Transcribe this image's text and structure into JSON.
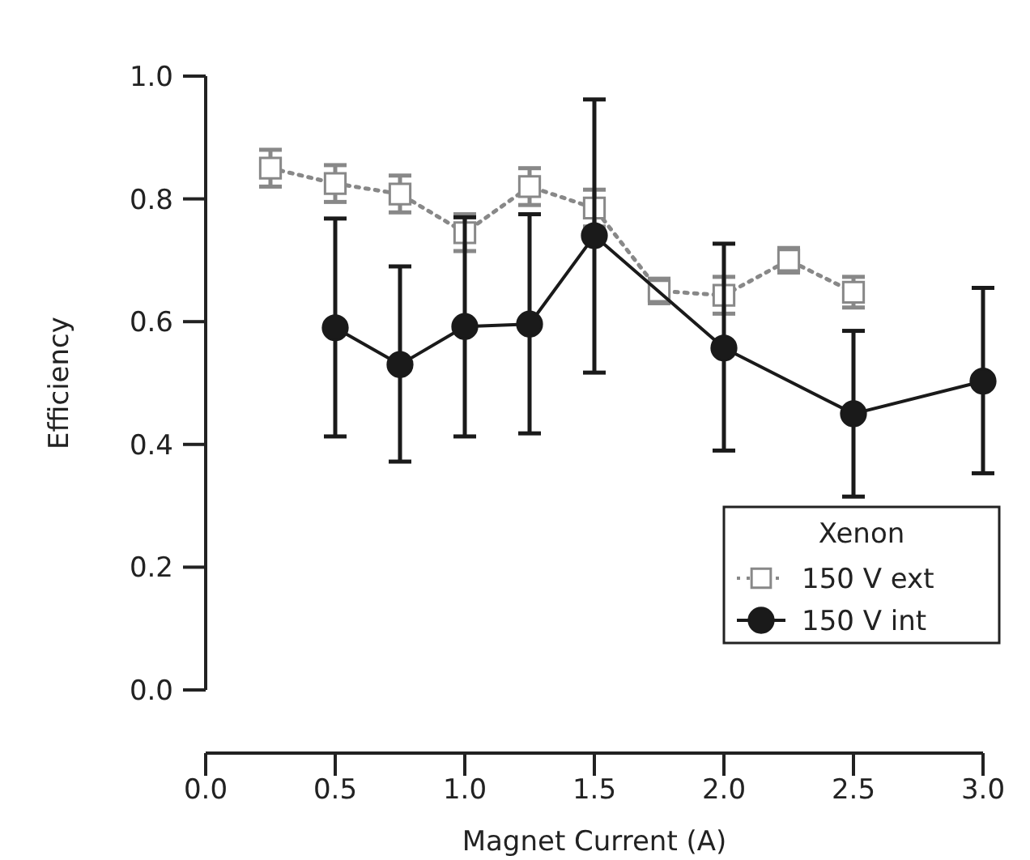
{
  "chart_data": {
    "type": "line",
    "xlabel": "Magnet Current (A)",
    "ylabel": "Efficiency",
    "legend_title": "Xenon",
    "legend": "bottom right",
    "xlim": [
      0,
      3.0
    ],
    "ylim": [
      0,
      1.0
    ],
    "xticks": [
      {
        "value": 0,
        "label": "0.0"
      },
      {
        "value": 0.5,
        "label": "0.5"
      },
      {
        "value": 1,
        "label": "1.0"
      },
      {
        "value": 1.5,
        "label": "1.5"
      },
      {
        "value": 2,
        "label": "2.0"
      },
      {
        "value": 2.5,
        "label": "2.5"
      },
      {
        "value": 3,
        "label": "3.0"
      }
    ],
    "yticks": [
      {
        "value": 0,
        "label": "0.0"
      },
      {
        "value": 0.2,
        "label": "0.2"
      },
      {
        "value": 0.4,
        "label": "0.4"
      },
      {
        "value": 0.6,
        "label": "0.6"
      },
      {
        "value": 0.8,
        "label": "0.8"
      },
      {
        "value": 1,
        "label": "1.0"
      }
    ],
    "series": [
      {
        "name": "150 V ext",
        "color": "#888888",
        "marker": "square",
        "line_style": "dotted",
        "x": [
          0.25,
          0.5,
          0.75,
          1.0,
          1.25,
          1.5,
          1.75,
          2.0,
          2.25,
          2.5
        ],
        "values": [
          0.85,
          0.825,
          0.808,
          0.745,
          0.82,
          0.785,
          0.65,
          0.643,
          0.7,
          0.648
        ],
        "errors": [
          0.03,
          0.03,
          0.03,
          0.03,
          0.03,
          0.03,
          0.02,
          0.03,
          0.02,
          0.025
        ]
      },
      {
        "name": "150 V int",
        "color": "#1a1a1a",
        "marker": "circle",
        "line_style": "solid",
        "x": [
          0.5,
          0.75,
          1.0,
          1.25,
          1.5,
          2.0,
          2.5,
          3.0
        ],
        "values": [
          0.59,
          0.53,
          0.592,
          0.596,
          0.74,
          0.557,
          0.45,
          0.503
        ],
        "errors": [
          [
            0.413,
            0.768
          ],
          [
            0.372,
            0.69
          ],
          [
            0.413,
            0.77
          ],
          [
            0.418,
            0.775
          ],
          [
            0.517,
            0.962
          ],
          [
            0.39,
            0.727
          ],
          [
            0.315,
            0.585
          ],
          [
            0.353,
            0.655
          ]
        ]
      }
    ]
  }
}
